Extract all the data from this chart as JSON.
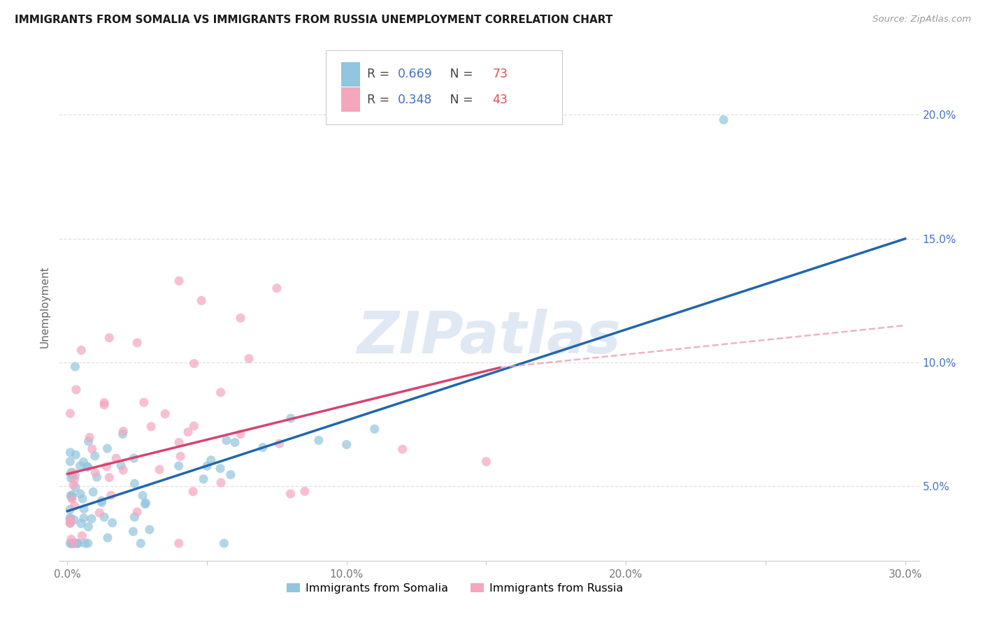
{
  "title": "IMMIGRANTS FROM SOMALIA VS IMMIGRANTS FROM RUSSIA UNEMPLOYMENT CORRELATION CHART",
  "source": "Source: ZipAtlas.com",
  "ylabel": "Unemployment",
  "xlim": [
    -0.003,
    0.305
  ],
  "ylim": [
    0.02,
    0.225
  ],
  "xtick_vals": [
    0.0,
    0.05,
    0.1,
    0.15,
    0.2,
    0.25,
    0.3
  ],
  "xtick_labels": [
    "0.0%",
    "",
    "10.0%",
    "",
    "20.0%",
    "",
    "30.0%"
  ],
  "ytick_vals": [
    0.05,
    0.1,
    0.15,
    0.2
  ],
  "ytick_labels": [
    "5.0%",
    "10.0%",
    "15.0%",
    "20.0%"
  ],
  "somalia_color": "#92c5de",
  "russia_color": "#f4a6bf",
  "somalia_label": "Immigrants from Somalia",
  "russia_label": "Immigrants from Russia",
  "trendline_somalia_color": "#2166ac",
  "trendline_russia_solid_color": "#d6446e",
  "trendline_russia_dash_color": "#e8a0b4",
  "watermark": "ZIPatlas",
  "watermark_color": "#c8d8ea",
  "background_color": "#ffffff",
  "grid_color": "#e0e0e0",
  "somalia_N": 73,
  "russia_N": 43,
  "somalia_R": "0.669",
  "russia_R": "0.348",
  "legend_r_color": "#4472c4",
  "legend_n_color": "#e05050",
  "somalia_trendline_x0": 0.0,
  "somalia_trendline_y0": 0.04,
  "somalia_trendline_x1": 0.3,
  "somalia_trendline_y1": 0.15,
  "russia_trendline_x0": 0.0,
  "russia_trendline_y0": 0.055,
  "russia_trendline_xsolid": 0.155,
  "russia_trendline_ysolid": 0.098,
  "russia_trendline_x1": 0.3,
  "russia_trendline_y1": 0.115
}
